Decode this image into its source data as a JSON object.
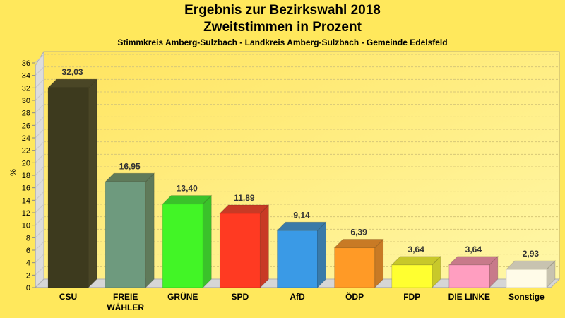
{
  "chart_data": {
    "type": "bar",
    "title": "Ergebnis zur Bezirkswahl 2018",
    "subtitle": "Zweitstimmen in Prozent",
    "subsubtitle": "Stimmkreis Amberg-Sulzbach - Landkreis Amberg-Sulzbach - Gemeinde Edelsfeld",
    "xlabel": "",
    "ylabel": "%",
    "ylim": [
      0,
      36
    ],
    "yticks": [
      0,
      2,
      4,
      6,
      8,
      10,
      12,
      14,
      16,
      18,
      20,
      22,
      24,
      26,
      28,
      30,
      32,
      34,
      36
    ],
    "grid": true,
    "categories": [
      [
        "CSU"
      ],
      [
        "FREIE",
        "WÄHLER"
      ],
      [
        "GRÜNE"
      ],
      [
        "SPD"
      ],
      [
        "AfD"
      ],
      [
        "ÖDP"
      ],
      [
        "FDP"
      ],
      [
        "DIE LINKE"
      ],
      [
        "Sonstige"
      ]
    ],
    "values": [
      32.03,
      16.95,
      13.4,
      11.89,
      9.14,
      6.39,
      3.64,
      3.64,
      2.93
    ],
    "value_labels": [
      "32,03",
      "16,95",
      "13,40",
      "11,89",
      "9,14",
      "6,39",
      "3,64",
      "3,64",
      "2,93"
    ],
    "colors": [
      "#3d3a1e",
      "#6e9a7e",
      "#42f526",
      "#ff3a22",
      "#3a9ae6",
      "#ff9a26",
      "#ffff30",
      "#ff9ec0",
      "#fffbe8"
    ],
    "side_colors": [
      "#4a4626",
      "#5f7a5a",
      "#3ac22a",
      "#c83a25",
      "#3a7aa8",
      "#c87a25",
      "#c8c82a",
      "#c87a8a",
      "#c8c3b0"
    ]
  }
}
